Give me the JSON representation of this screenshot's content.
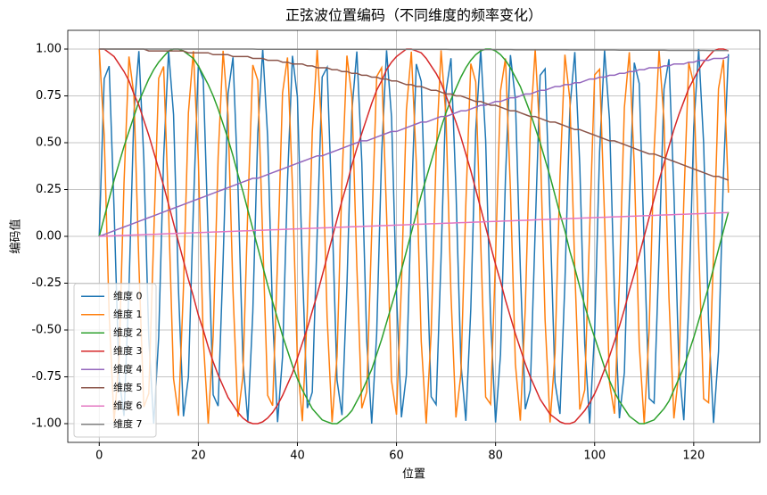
{
  "chart_data": {
    "type": "line",
    "title": "正弦波位置编码（不同维度的频率变化）",
    "x_label": "位置",
    "y_label": "编码值",
    "x": [
      0,
      1,
      2,
      3,
      4,
      5,
      6,
      7,
      8,
      9,
      10,
      11,
      12,
      13,
      14,
      15,
      16,
      17,
      18,
      19,
      20,
      21,
      22,
      23,
      24,
      25,
      26,
      27,
      28,
      29,
      30,
      31,
      32,
      33,
      34,
      35,
      36,
      37,
      38,
      39,
      40,
      41,
      42,
      43,
      44,
      45,
      46,
      47,
      48,
      49,
      50,
      51,
      52,
      53,
      54,
      55,
      56,
      57,
      58,
      59,
      60,
      61,
      62,
      63,
      64,
      65,
      66,
      67,
      68,
      69,
      70,
      71,
      72,
      73,
      74,
      75,
      76,
      77,
      78,
      79,
      80,
      81,
      82,
      83,
      84,
      85,
      86,
      87,
      88,
      89,
      90,
      91,
      92,
      93,
      94,
      95,
      96,
      97,
      98,
      99,
      100,
      101,
      102,
      103,
      104,
      105,
      106,
      107,
      108,
      109,
      110,
      111,
      112,
      113,
      114,
      115,
      116,
      117,
      118,
      119,
      120,
      121,
      122,
      123,
      124,
      125,
      126,
      127
    ],
    "series": [
      {
        "name": "维度 0",
        "color": "#1f77b4",
        "values": [
          0,
          0.841,
          0.909,
          0.141,
          -0.757,
          -0.959,
          -0.279,
          0.657,
          0.989,
          0.412,
          -0.544,
          -1.0,
          -0.537,
          0.42,
          0.991,
          0.65,
          -0.288,
          -0.961,
          -0.751,
          0.15,
          0.913,
          0.837,
          -0.009,
          -0.846,
          -0.906,
          -0.132,
          0.763,
          0.956,
          0.271,
          -0.664,
          -0.988,
          -0.404,
          0.551,
          1.0,
          0.529,
          -0.428,
          -0.992,
          -0.644,
          0.296,
          0.964,
          0.745,
          -0.159,
          -0.917,
          -0.832,
          0.018,
          0.851,
          0.902,
          0.124,
          -0.768,
          -0.954,
          -0.262,
          0.67,
          0.987,
          0.396,
          -0.559,
          -1.0,
          -0.521,
          0.436,
          0.993,
          0.637,
          -0.305,
          -0.966,
          -0.739,
          0.167,
          0.92,
          0.827,
          -0.027,
          -0.856,
          -0.898,
          -0.115,
          0.774,
          0.951,
          0.254,
          -0.677,
          -0.985,
          -0.388,
          0.566,
          0.999,
          0.514,
          -0.444,
          -0.994,
          -0.63,
          0.313,
          0.968,
          0.733,
          -0.176,
          -0.923,
          -0.821,
          0.035,
          0.86,
          0.894,
          0.106,
          -0.78,
          -0.948,
          -0.245,
          0.683,
          0.984,
          0.38,
          -0.573,
          -0.999,
          -0.506,
          0.452,
          0.995,
          0.623,
          -0.322,
          -0.971,
          -0.727,
          0.185,
          0.927,
          0.816,
          -0.044,
          -0.865,
          -0.89,
          -0.098,
          0.786,
          0.946,
          0.237,
          -0.69,
          -0.982,
          -0.372,
          0.581,
          0.999,
          0.498,
          -0.46,
          -0.996,
          -0.616,
          0.33,
          0.973
        ]
      },
      {
        "name": "维度 1",
        "color": "#ff7f0e",
        "values": [
          1,
          0.54,
          -0.416,
          -0.99,
          -0.654,
          0.284,
          0.96,
          0.754,
          -0.146,
          -0.911,
          -0.839,
          0.004,
          0.844,
          0.907,
          0.137,
          -0.76,
          -0.958,
          -0.275,
          0.66,
          0.989,
          0.408,
          -0.548,
          -1.0,
          -0.533,
          0.424,
          0.991,
          0.647,
          -0.292,
          -0.963,
          -0.748,
          0.154,
          0.915,
          0.834,
          -0.013,
          -0.849,
          -0.904,
          -0.128,
          0.766,
          0.955,
          0.267,
          -0.667,
          -0.987,
          -0.4,
          0.555,
          1.0,
          0.525,
          -0.432,
          -0.992,
          -0.64,
          0.3,
          0.965,
          0.742,
          -0.162,
          -0.918,
          -0.829,
          0.022,
          0.853,
          0.9,
          0.119,
          -0.771,
          -0.952,
          -0.258,
          0.674,
          0.986,
          0.392,
          -0.562,
          -1.0,
          -0.517,
          0.44,
          0.993,
          0.633,
          -0.309,
          -0.967,
          -0.736,
          0.172,
          0.922,
          0.825,
          -0.031,
          -0.858,
          -0.896,
          -0.11,
          0.777,
          0.95,
          0.249,
          -0.68,
          -0.984,
          -0.384,
          0.57,
          0.999,
          0.51,
          -0.448,
          -0.994,
          -0.626,
          0.318,
          0.97,
          0.73,
          -0.181,
          -0.925,
          -0.82,
          0.04,
          0.862,
          0.892,
          0.101,
          -0.782,
          -0.947,
          -0.241,
          0.687,
          0.983,
          0.376,
          -0.577,
          -0.999,
          -0.502,
          0.456,
          0.995,
          0.618,
          -0.326,
          -0.972,
          -0.724,
          0.189,
          0.928,
          0.814,
          -0.049,
          -0.867,
          -0.888,
          -0.093,
          0.788,
          0.944,
          0.233
        ]
      },
      {
        "name": "维度 2",
        "color": "#2ca02c",
        "values": [
          0,
          0.1,
          0.2,
          0.3,
          0.39,
          0.48,
          0.56,
          0.64,
          0.72,
          0.78,
          0.84,
          0.89,
          0.93,
          0.96,
          0.99,
          1.0,
          1.0,
          0.99,
          0.97,
          0.95,
          0.91,
          0.86,
          0.81,
          0.75,
          0.68,
          0.6,
          0.52,
          0.43,
          0.33,
          0.24,
          0.14,
          0.04,
          -0.06,
          -0.16,
          -0.26,
          -0.35,
          -0.44,
          -0.53,
          -0.61,
          -0.69,
          -0.76,
          -0.82,
          -0.87,
          -0.92,
          -0.95,
          -0.98,
          -0.99,
          -1.0,
          -1.0,
          -0.98,
          -0.96,
          -0.93,
          -0.88,
          -0.83,
          -0.77,
          -0.71,
          -0.63,
          -0.55,
          -0.46,
          -0.37,
          -0.28,
          -0.18,
          -0.08,
          0.02,
          0.12,
          0.22,
          0.31,
          0.4,
          0.49,
          0.58,
          0.66,
          0.73,
          0.79,
          0.85,
          0.9,
          0.94,
          0.97,
          0.99,
          1.0,
          1.0,
          0.99,
          0.97,
          0.94,
          0.9,
          0.85,
          0.8,
          0.73,
          0.66,
          0.58,
          0.5,
          0.41,
          0.32,
          0.22,
          0.12,
          0.03,
          -0.08,
          -0.17,
          -0.27,
          -0.37,
          -0.46,
          -0.54,
          -0.62,
          -0.7,
          -0.77,
          -0.83,
          -0.88,
          -0.92,
          -0.96,
          -0.98,
          -1.0,
          -1.0,
          -0.99,
          -0.98,
          -0.95,
          -0.92,
          -0.88,
          -0.82,
          -0.76,
          -0.7,
          -0.62,
          -0.54,
          -0.45,
          -0.36,
          -0.27,
          -0.17,
          -0.07,
          0.03,
          0.13
        ]
      },
      {
        "name": "维度 3",
        "color": "#d62728",
        "values": [
          1,
          1.0,
          0.98,
          0.96,
          0.92,
          0.88,
          0.83,
          0.76,
          0.7,
          0.62,
          0.54,
          0.45,
          0.36,
          0.27,
          0.17,
          0.07,
          -0.03,
          -0.13,
          -0.23,
          -0.32,
          -0.42,
          -0.5,
          -0.59,
          -0.67,
          -0.74,
          -0.8,
          -0.86,
          -0.9,
          -0.94,
          -0.97,
          -0.99,
          -1.0,
          -1.0,
          -0.99,
          -0.97,
          -0.94,
          -0.9,
          -0.85,
          -0.79,
          -0.73,
          -0.65,
          -0.57,
          -0.49,
          -0.4,
          -0.31,
          -0.21,
          -0.11,
          -0.01,
          0.09,
          0.19,
          0.28,
          0.38,
          0.47,
          0.55,
          0.63,
          0.71,
          0.78,
          0.83,
          0.89,
          0.93,
          0.96,
          0.98,
          1.0,
          1.0,
          0.99,
          0.98,
          0.95,
          0.91,
          0.87,
          0.82,
          0.75,
          0.68,
          0.61,
          0.53,
          0.44,
          0.35,
          0.25,
          0.15,
          0.05,
          -0.05,
          -0.15,
          -0.24,
          -0.34,
          -0.43,
          -0.52,
          -0.6,
          -0.68,
          -0.75,
          -0.81,
          -0.87,
          -0.91,
          -0.95,
          -0.97,
          -0.99,
          -1.0,
          -1.0,
          -0.99,
          -0.96,
          -0.93,
          -0.89,
          -0.84,
          -0.78,
          -0.71,
          -0.64,
          -0.56,
          -0.48,
          -0.39,
          -0.29,
          -0.2,
          -0.1,
          0.0,
          0.1,
          0.2,
          0.3,
          0.39,
          0.48,
          0.57,
          0.65,
          0.72,
          0.79,
          0.84,
          0.89,
          0.93,
          0.96,
          0.99,
          1.0,
          1.0,
          0.99
        ]
      },
      {
        "name": "维度 4",
        "color": "#9467bd",
        "values": [
          0,
          0.01,
          0.02,
          0.03,
          0.04,
          0.05,
          0.06,
          0.07,
          0.08,
          0.09,
          0.1,
          0.11,
          0.12,
          0.13,
          0.14,
          0.15,
          0.16,
          0.17,
          0.18,
          0.19,
          0.2,
          0.21,
          0.22,
          0.23,
          0.24,
          0.25,
          0.26,
          0.27,
          0.28,
          0.29,
          0.3,
          0.31,
          0.31,
          0.32,
          0.33,
          0.34,
          0.35,
          0.36,
          0.37,
          0.38,
          0.39,
          0.4,
          0.41,
          0.42,
          0.43,
          0.43,
          0.44,
          0.45,
          0.46,
          0.47,
          0.48,
          0.49,
          0.5,
          0.51,
          0.51,
          0.52,
          0.53,
          0.54,
          0.55,
          0.56,
          0.56,
          0.57,
          0.58,
          0.59,
          0.6,
          0.61,
          0.61,
          0.62,
          0.63,
          0.64,
          0.64,
          0.65,
          0.66,
          0.67,
          0.67,
          0.68,
          0.69,
          0.7,
          0.7,
          0.71,
          0.72,
          0.72,
          0.73,
          0.74,
          0.74,
          0.75,
          0.76,
          0.76,
          0.77,
          0.78,
          0.78,
          0.79,
          0.8,
          0.8,
          0.81,
          0.81,
          0.82,
          0.82,
          0.83,
          0.84,
          0.84,
          0.85,
          0.85,
          0.86,
          0.86,
          0.87,
          0.87,
          0.88,
          0.88,
          0.89,
          0.89,
          0.9,
          0.9,
          0.9,
          0.91,
          0.91,
          0.92,
          0.92,
          0.92,
          0.93,
          0.93,
          0.94,
          0.94,
          0.94,
          0.95,
          0.95,
          0.95,
          0.96
        ]
      },
      {
        "name": "维度 5",
        "color": "#8c564b",
        "values": [
          1,
          1.0,
          1.0,
          1.0,
          1.0,
          1.0,
          1.0,
          1.0,
          1.0,
          1.0,
          0.99,
          0.99,
          0.99,
          0.99,
          0.99,
          0.99,
          0.99,
          0.99,
          0.98,
          0.98,
          0.98,
          0.98,
          0.98,
          0.97,
          0.97,
          0.97,
          0.97,
          0.96,
          0.96,
          0.96,
          0.96,
          0.95,
          0.95,
          0.95,
          0.94,
          0.94,
          0.94,
          0.93,
          0.93,
          0.92,
          0.92,
          0.92,
          0.91,
          0.91,
          0.9,
          0.9,
          0.9,
          0.89,
          0.89,
          0.88,
          0.88,
          0.87,
          0.87,
          0.86,
          0.86,
          0.85,
          0.85,
          0.84,
          0.84,
          0.83,
          0.83,
          0.82,
          0.81,
          0.81,
          0.8,
          0.8,
          0.79,
          0.78,
          0.78,
          0.77,
          0.76,
          0.76,
          0.75,
          0.75,
          0.74,
          0.73,
          0.72,
          0.72,
          0.71,
          0.7,
          0.7,
          0.69,
          0.68,
          0.67,
          0.67,
          0.66,
          0.65,
          0.64,
          0.64,
          0.63,
          0.62,
          0.61,
          0.61,
          0.6,
          0.59,
          0.58,
          0.57,
          0.57,
          0.56,
          0.55,
          0.54,
          0.53,
          0.52,
          0.51,
          0.51,
          0.5,
          0.49,
          0.48,
          0.47,
          0.46,
          0.45,
          0.44,
          0.44,
          0.43,
          0.42,
          0.41,
          0.4,
          0.39,
          0.38,
          0.37,
          0.36,
          0.35,
          0.34,
          0.33,
          0.32,
          0.32,
          0.31,
          0.3
        ]
      },
      {
        "name": "维度 6",
        "color": "#e377c2",
        "values": [
          0,
          0.001,
          0.002,
          0.003,
          0.004,
          0.005,
          0.006,
          0.007,
          0.008,
          0.009,
          0.01,
          0.011,
          0.012,
          0.013,
          0.014,
          0.015,
          0.016,
          0.017,
          0.018,
          0.019,
          0.02,
          0.021,
          0.022,
          0.023,
          0.024,
          0.025,
          0.026,
          0.027,
          0.028,
          0.029,
          0.03,
          0.031,
          0.032,
          0.033,
          0.034,
          0.035,
          0.036,
          0.037,
          0.038,
          0.039,
          0.04,
          0.041,
          0.042,
          0.043,
          0.044,
          0.045,
          0.046,
          0.047,
          0.048,
          0.049,
          0.05,
          0.051,
          0.052,
          0.053,
          0.054,
          0.055,
          0.056,
          0.057,
          0.058,
          0.059,
          0.06,
          0.061,
          0.062,
          0.063,
          0.064,
          0.065,
          0.066,
          0.067,
          0.068,
          0.069,
          0.07,
          0.071,
          0.072,
          0.073,
          0.074,
          0.075,
          0.076,
          0.077,
          0.078,
          0.079,
          0.08,
          0.081,
          0.082,
          0.083,
          0.084,
          0.085,
          0.086,
          0.087,
          0.088,
          0.089,
          0.09,
          0.091,
          0.092,
          0.093,
          0.094,
          0.095,
          0.096,
          0.097,
          0.098,
          0.099,
          0.1,
          0.101,
          0.102,
          0.103,
          0.104,
          0.105,
          0.106,
          0.107,
          0.108,
          0.109,
          0.11,
          0.111,
          0.112,
          0.113,
          0.114,
          0.115,
          0.116,
          0.117,
          0.118,
          0.119,
          0.12,
          0.121,
          0.122,
          0.123,
          0.124,
          0.125,
          0.126,
          0.127
        ]
      },
      {
        "name": "维度 7",
        "color": "#7f7f7f",
        "values": [
          1,
          1,
          1,
          1,
          1,
          1,
          1,
          1,
          1,
          1,
          1,
          1,
          1,
          1,
          1,
          1,
          1,
          1,
          1,
          1,
          1,
          1,
          1,
          1,
          1,
          1,
          1,
          1,
          1,
          1,
          1,
          1,
          0.999,
          0.999,
          0.999,
          0.999,
          0.999,
          0.999,
          0.999,
          0.999,
          0.999,
          0.999,
          0.999,
          0.999,
          0.999,
          0.999,
          0.999,
          0.999,
          0.999,
          0.999,
          0.999,
          0.999,
          0.999,
          0.999,
          0.999,
          0.998,
          0.998,
          0.998,
          0.998,
          0.998,
          0.998,
          0.998,
          0.998,
          0.998,
          0.998,
          0.998,
          0.998,
          0.998,
          0.998,
          0.998,
          0.998,
          0.997,
          0.997,
          0.997,
          0.997,
          0.997,
          0.997,
          0.997,
          0.997,
          0.997,
          0.997,
          0.997,
          0.997,
          0.997,
          0.996,
          0.996,
          0.996,
          0.996,
          0.996,
          0.996,
          0.996,
          0.996,
          0.996,
          0.996,
          0.996,
          0.995,
          0.995,
          0.995,
          0.995,
          0.995,
          0.995,
          0.995,
          0.995,
          0.995,
          0.995,
          0.994,
          0.994,
          0.994,
          0.994,
          0.994,
          0.994,
          0.994,
          0.994,
          0.994,
          0.994,
          0.993,
          0.993,
          0.993,
          0.993,
          0.993,
          0.993,
          0.993,
          0.993,
          0.992,
          0.992,
          0.992,
          0.992,
          0.992
        ]
      }
    ],
    "xlim": [
      -6.35,
      133.35
    ],
    "ylim": [
      -1.1,
      1.1
    ],
    "xticks": [
      0,
      20,
      40,
      60,
      80,
      100,
      120
    ],
    "yticks": [
      {
        "value": -1,
        "label": "-1.00"
      },
      {
        "value": -0.75,
        "label": "-0.75"
      },
      {
        "value": -0.5,
        "label": "-0.50"
      },
      {
        "value": -0.25,
        "label": "-0.25"
      },
      {
        "value": 0,
        "label": "0.00"
      },
      {
        "value": 0.25,
        "label": "0.25"
      },
      {
        "value": 0.5,
        "label": "0.50"
      },
      {
        "value": 0.75,
        "label": "0.75"
      },
      {
        "value": 1,
        "label": "1.00"
      }
    ],
    "grid": true,
    "legend": "lower left"
  }
}
